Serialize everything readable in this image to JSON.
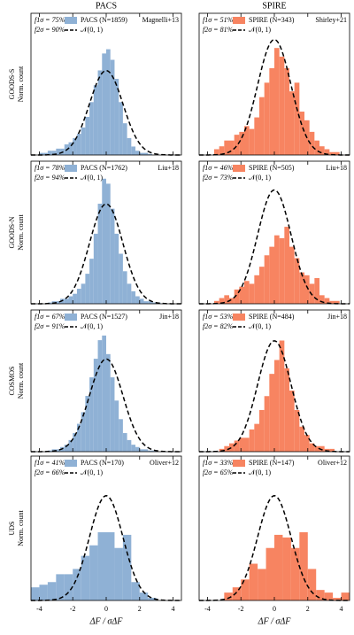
{
  "chart_data": [
    {
      "type": "histogram",
      "title": "PACS",
      "field": "GOODS-S",
      "ylabel": "Norm. count",
      "reference": "Magnelli+13",
      "annotations": [
        "f1σ = 75%",
        "f2σ = 90%"
      ],
      "bins": [
        -4,
        -3.75,
        -3.5,
        -3.25,
        -3,
        -2.75,
        -2.5,
        -2.25,
        -2,
        -1.75,
        -1.5,
        -1.25,
        -1,
        -0.75,
        -0.5,
        -0.25,
        0,
        0.25,
        0.5,
        0.75,
        1,
        1.25,
        1.5,
        1.75,
        2,
        2.25,
        2.5,
        2.75,
        3
      ],
      "series": [
        {
          "name": "PACS (N=1859)",
          "color": "#8fb1d5",
          "values": [
            0.01,
            0.01,
            0.02,
            0.02,
            0.03,
            0.03,
            0.05,
            0.06,
            0.08,
            0.1,
            0.13,
            0.18,
            0.25,
            0.33,
            0.4,
            0.48,
            0.5,
            0.45,
            0.36,
            0.25,
            0.15,
            0.08,
            0.04,
            0.02,
            0.01,
            0.01,
            0.005,
            0
          ]
        }
      ],
      "model": {
        "name": "𝒩(0, 1)",
        "mean": 0,
        "sigma": 1
      },
      "xlim": [
        -4.5,
        4.5
      ],
      "ylim": [
        0,
        0.67
      ],
      "xticks": [
        -4,
        -2,
        0,
        2,
        4
      ]
    },
    {
      "type": "histogram",
      "title": "SPIRE",
      "reference": "Shirley+21",
      "annotations": [
        "f1σ = 51%",
        "f2σ = 81%"
      ],
      "bins": [
        -3.6,
        -3.3,
        -3,
        -2.7,
        -2.4,
        -2.1,
        -1.8,
        -1.5,
        -1.2,
        -0.9,
        -0.6,
        -0.3,
        0,
        0.3,
        0.6,
        0.9,
        1.2,
        1.5,
        1.8,
        2.1,
        2.4,
        2.7,
        3,
        3.3,
        3.6,
        3.9,
        4.2
      ],
      "series": [
        {
          "name": "SPIRE (N=343)",
          "color": "#f78461",
          "values": [
            0.02,
            0.03,
            0.05,
            0.05,
            0.07,
            0.08,
            0.1,
            0.09,
            0.13,
            0.2,
            0.25,
            0.3,
            0.37,
            0.34,
            0.3,
            0.22,
            0.25,
            0.15,
            0.12,
            0.08,
            0.05,
            0.03,
            0.02,
            0.01,
            0.01,
            0
          ]
        }
      ],
      "model": {
        "name": "𝒩(0, 1)",
        "mean": 0,
        "sigma": 1
      },
      "xlim": [
        -4.5,
        4.5
      ],
      "ylim": [
        0,
        0.49
      ],
      "xticks": [
        -4,
        -2,
        0,
        2,
        4
      ]
    },
    {
      "type": "histogram",
      "field": "GOODS-N",
      "ylabel": "Norm. count",
      "reference": "Liu+18",
      "annotations": [
        "f1σ = 78%",
        "f2σ = 94%"
      ],
      "bins": [
        -3.5,
        -3.25,
        -3,
        -2.75,
        -2.5,
        -2.25,
        -2,
        -1.75,
        -1.5,
        -1.25,
        -1,
        -0.75,
        -0.5,
        -0.25,
        0,
        0.25,
        0.5,
        0.75,
        1,
        1.25,
        1.5,
        1.75,
        2,
        2.25,
        2.5,
        2.75,
        3,
        3.25,
        3.5
      ],
      "series": [
        {
          "name": "PACS (N=1762)",
          "color": "#8fb1d5",
          "values": [
            0.005,
            0.01,
            0.01,
            0.02,
            0.02,
            0.03,
            0.04,
            0.06,
            0.08,
            0.12,
            0.18,
            0.28,
            0.4,
            0.5,
            0.48,
            0.38,
            0.28,
            0.2,
            0.13,
            0.08,
            0.05,
            0.03,
            0.02,
            0.01,
            0.01,
            0.005,
            0.005,
            0
          ]
        }
      ],
      "model": {
        "name": "𝒩(0, 1)",
        "mean": 0,
        "sigma": 1
      },
      "xlim": [
        -4.5,
        4.5
      ],
      "ylim": [
        0,
        0.57
      ],
      "xticks": [
        -4,
        -2,
        0,
        2,
        4
      ]
    },
    {
      "type": "histogram",
      "reference": "Liu+18",
      "annotations": [
        "f1σ = 46%",
        "f2σ = 73%"
      ],
      "bins": [
        -3.6,
        -3.3,
        -3,
        -2.7,
        -2.4,
        -2.1,
        -1.8,
        -1.5,
        -1.2,
        -0.9,
        -0.6,
        -0.3,
        0,
        0.3,
        0.6,
        0.9,
        1.2,
        1.5,
        1.8,
        2.1,
        2.4,
        2.7,
        3,
        3.3,
        3.6,
        3.9,
        4.2
      ],
      "series": [
        {
          "name": "SPIRE (N=505)",
          "color": "#f78461",
          "values": [
            0.01,
            0.02,
            0.03,
            0.02,
            0.05,
            0.06,
            0.08,
            0.07,
            0.1,
            0.13,
            0.17,
            0.2,
            0.24,
            0.23,
            0.27,
            0.2,
            0.16,
            0.11,
            0.1,
            0.07,
            0.09,
            0.03,
            0.02,
            0.01,
            0.01,
            0
          ]
        }
      ],
      "model": {
        "name": "𝒩(0, 1)",
        "mean": 0,
        "sigma": 1
      },
      "xlim": [
        -4.5,
        4.5
      ],
      "ylim": [
        0,
        0.5
      ],
      "xticks": [
        -4,
        -2,
        0,
        2,
        4
      ]
    },
    {
      "type": "histogram",
      "field": "COSMOS",
      "ylabel": "Norm. count",
      "reference": "Jin+18",
      "annotations": [
        "f1σ = 67%",
        "f2σ = 91%"
      ],
      "bins": [
        -3.5,
        -3.25,
        -3,
        -2.75,
        -2.5,
        -2.25,
        -2,
        -1.75,
        -1.5,
        -1.25,
        -1,
        -0.75,
        -0.5,
        -0.25,
        0,
        0.25,
        0.5,
        0.75,
        1,
        1.25,
        1.5,
        1.75,
        2,
        2.25,
        2.5,
        2.75,
        3,
        3.25,
        3.5
      ],
      "series": [
        {
          "name": "PACS (N=1527)",
          "color": "#8fb1d5",
          "values": [
            0.005,
            0.01,
            0.01,
            0.02,
            0.03,
            0.05,
            0.08,
            0.12,
            0.17,
            0.24,
            0.32,
            0.4,
            0.48,
            0.5,
            0.42,
            0.32,
            0.22,
            0.14,
            0.08,
            0.05,
            0.03,
            0.02,
            0.01,
            0.01,
            0.005,
            0.005,
            0,
            0
          ]
        }
      ],
      "model": {
        "name": "𝒩(0, 1)",
        "mean": 0,
        "sigma": 1
      },
      "xlim": [
        -4.5,
        4.5
      ],
      "ylim": [
        0,
        0.61
      ],
      "xticks": [
        -4,
        -2,
        0,
        2,
        4
      ]
    },
    {
      "type": "histogram",
      "reference": "Jin+18",
      "annotations": [
        "f1σ = 53%",
        "f2σ = 82%"
      ],
      "bins": [
        -3.6,
        -3.3,
        -3,
        -2.7,
        -2.4,
        -2.1,
        -1.8,
        -1.5,
        -1.2,
        -0.9,
        -0.6,
        -0.3,
        0,
        0.3,
        0.6,
        0.9,
        1.2,
        1.5,
        1.8,
        2.1,
        2.4,
        2.7,
        3,
        3.3,
        3.6,
        3.9,
        4.2
      ],
      "series": [
        {
          "name": "SPIRE (N=484)",
          "color": "#f78461",
          "values": [
            0,
            0.01,
            0.02,
            0.03,
            0.04,
            0.05,
            0.05,
            0.08,
            0.1,
            0.15,
            0.2,
            0.28,
            0.33,
            0.4,
            0.3,
            0.22,
            0.15,
            0.09,
            0.06,
            0.03,
            0.02,
            0.02,
            0.01,
            0.01,
            0,
            0
          ]
        }
      ],
      "model": {
        "name": "𝒩(0, 1)",
        "mean": 0,
        "sigma": 1
      },
      "xlim": [
        -4.5,
        4.5
      ],
      "ylim": [
        0,
        0.51
      ],
      "xticks": [
        -4,
        -2,
        0,
        2,
        4
      ]
    },
    {
      "type": "histogram",
      "field": "UDS",
      "ylabel": "Norm. count",
      "xlabel": "ΔF / σΔF",
      "reference": "Oliver+12",
      "annotations": [
        "f1σ = 41%",
        "f2σ = 66%"
      ],
      "bins": [
        -4.5,
        -4,
        -3.5,
        -3,
        -2.5,
        -2,
        -1.5,
        -1,
        -0.5,
        0,
        0.5,
        1,
        1.5,
        2,
        2.5,
        3
      ],
      "series": [
        {
          "name": "PACS (N=170)",
          "color": "#8fb1d5",
          "values": [
            0.05,
            0.06,
            0.07,
            0.1,
            0.1,
            0.12,
            0.17,
            0.21,
            0.26,
            0.26,
            0.2,
            0.25,
            0.07,
            0.03,
            0.01
          ]
        }
      ],
      "model": {
        "name": "𝒩(0, 1)",
        "mean": 0,
        "sigma": 1
      },
      "xlim": [
        -4.5,
        4.5
      ],
      "ylim": [
        0,
        0.55
      ],
      "xticks": [
        -4,
        -2,
        0,
        2,
        4
      ]
    },
    {
      "type": "histogram",
      "xlabel": "ΔF / σΔF",
      "reference": "Oliver+12",
      "annotations": [
        "f1σ = 33%",
        "f2σ = 65%"
      ],
      "bins": [
        -3,
        -2.5,
        -2,
        -1.5,
        -1,
        -0.5,
        0,
        0.5,
        1,
        1.5,
        2,
        2.5,
        3,
        3.5,
        4,
        4.5
      ],
      "series": [
        {
          "name": "SPIRE (N=147)",
          "color": "#f78461",
          "values": [
            0.03,
            0.05,
            0.08,
            0.14,
            0.12,
            0.2,
            0.25,
            0.24,
            0.2,
            0.26,
            0.12,
            0.04,
            0.03,
            0.01,
            0.03
          ]
        }
      ],
      "model": {
        "name": "𝒩(0, 1)",
        "mean": 0,
        "sigma": 1
      },
      "xlim": [
        -4.5,
        4.5
      ],
      "ylim": [
        0,
        0.55
      ],
      "xticks": [
        -4,
        -2,
        0,
        2,
        4
      ]
    }
  ]
}
